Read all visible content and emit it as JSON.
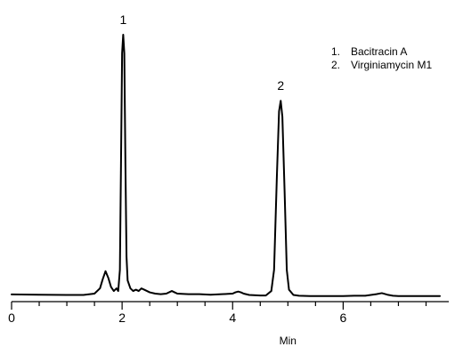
{
  "chart_data": {
    "type": "line",
    "title": "",
    "xlabel": "Min",
    "ylabel": "",
    "xlim": [
      0,
      7.75
    ],
    "ylim": [
      0,
      100
    ],
    "grid": false,
    "legend_position": "top-right",
    "x_ticks": [
      {
        "value": 0,
        "label": "0"
      },
      {
        "value": 2,
        "label": "2"
      },
      {
        "value": 4,
        "label": "4"
      },
      {
        "value": 6,
        "label": "6"
      }
    ],
    "x_minor_step": 0.5,
    "peaks": [
      {
        "label": "1",
        "x": 2.02,
        "y": 99
      },
      {
        "label": "2",
        "x": 4.87,
        "y": 74
      }
    ],
    "legend": [
      {
        "number": "1.",
        "name": "Bacitracin A"
      },
      {
        "number": "2.",
        "name": "Virginiamycin M1"
      }
    ],
    "series": [
      {
        "color": "#000000",
        "x": [
          0,
          0.5,
          1.0,
          1.3,
          1.5,
          1.6,
          1.65,
          1.7,
          1.75,
          1.8,
          1.85,
          1.9,
          1.93,
          1.96,
          1.98,
          2.0,
          2.02,
          2.04,
          2.06,
          2.08,
          2.1,
          2.15,
          2.2,
          2.25,
          2.3,
          2.35,
          2.4,
          2.45,
          2.5,
          2.6,
          2.7,
          2.8,
          2.9,
          2.95,
          3.0,
          3.2,
          3.4,
          3.6,
          3.8,
          4.0,
          4.05,
          4.1,
          4.15,
          4.2,
          4.3,
          4.5,
          4.6,
          4.7,
          4.75,
          4.8,
          4.84,
          4.87,
          4.9,
          4.94,
          4.98,
          5.02,
          5.1,
          5.2,
          5.4,
          5.6,
          5.8,
          6.0,
          6.2,
          6.4,
          6.6,
          6.7,
          6.8,
          6.9,
          7.0,
          7.2,
          7.4,
          7.6,
          7.75
        ],
        "y": [
          0.7,
          0.6,
          0.5,
          0.5,
          1.0,
          3.0,
          6.5,
          9.5,
          7.0,
          3.5,
          2.0,
          3.0,
          2.0,
          10.0,
          50.0,
          92.0,
          99.0,
          92.0,
          50.0,
          15.0,
          6.0,
          3.0,
          2.0,
          2.5,
          2.0,
          3.0,
          2.5,
          2.0,
          1.5,
          1.0,
          0.8,
          1.0,
          2.0,
          1.5,
          1.0,
          0.8,
          0.8,
          0.6,
          0.8,
          1.0,
          1.5,
          1.8,
          1.5,
          1.0,
          0.5,
          0.3,
          0.3,
          2.0,
          10.0,
          45.0,
          70.0,
          74.0,
          68.0,
          40.0,
          10.0,
          2.5,
          0.5,
          0.2,
          0.1,
          0.1,
          0.1,
          0.1,
          0.2,
          0.2,
          0.8,
          1.2,
          0.6,
          0.2,
          0.1,
          0.1,
          0.1,
          0.1,
          0.1
        ]
      }
    ]
  }
}
